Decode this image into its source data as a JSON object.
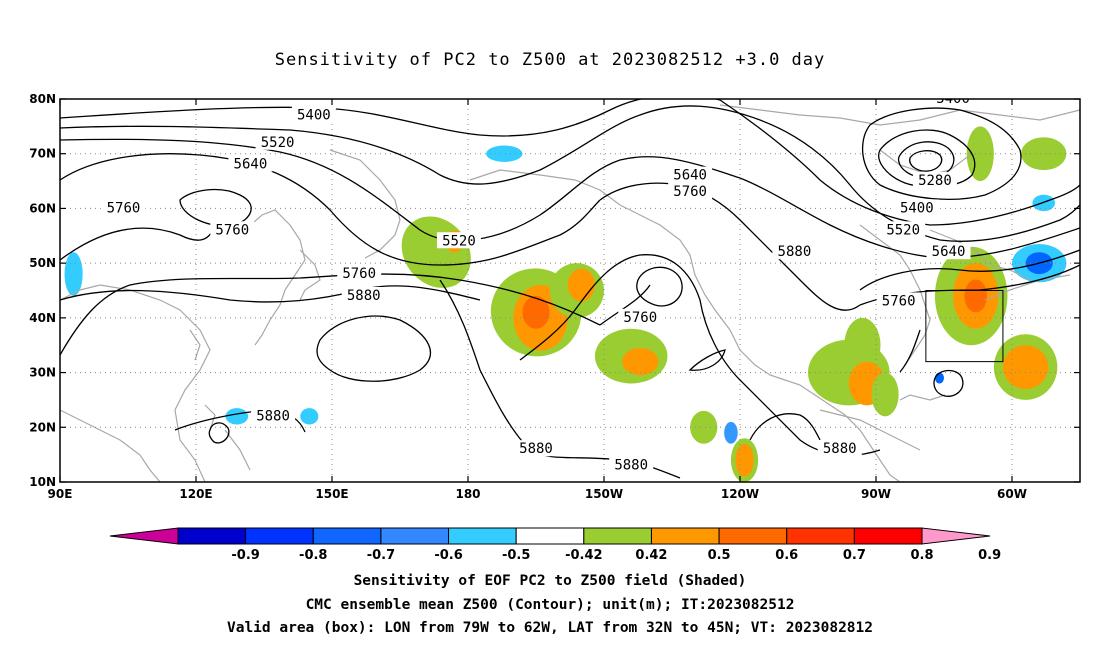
{
  "title": "Sensitivity of PC2 to Z500 at 2023082512 +3.0 day",
  "map": {
    "lon_range": [
      90,
      315
    ],
    "lat_range": [
      10,
      80
    ],
    "x_ticks": [
      {
        "lon": 90,
        "label": "90E"
      },
      {
        "lon": 120,
        "label": "120E"
      },
      {
        "lon": 150,
        "label": "150E"
      },
      {
        "lon": 180,
        "label": "180"
      },
      {
        "lon": 210,
        "label": "150W"
      },
      {
        "lon": 240,
        "label": "120W"
      },
      {
        "lon": 270,
        "label": "90W"
      },
      {
        "lon": 300,
        "label": "60W"
      }
    ],
    "y_ticks": [
      {
        "lat": 10,
        "label": "10N"
      },
      {
        "lat": 20,
        "label": "20N"
      },
      {
        "lat": 30,
        "label": "30N"
      },
      {
        "lat": 40,
        "label": "40N"
      },
      {
        "lat": 50,
        "label": "50N"
      },
      {
        "lat": 60,
        "label": "60N"
      },
      {
        "lat": 70,
        "label": "70N"
      },
      {
        "lat": 80,
        "label": "80N"
      }
    ],
    "grid": true,
    "valid_box": {
      "lon_min": 281,
      "lon_max": 298,
      "lat_min": 32,
      "lat_max": 45
    },
    "contour_labels": [
      {
        "text": "5400",
        "lon": 146,
        "lat": 77
      },
      {
        "text": "5520",
        "lon": 138,
        "lat": 72
      },
      {
        "text": "5640",
        "lon": 132,
        "lat": 68
      },
      {
        "text": "5760",
        "lon": 104,
        "lat": 60
      },
      {
        "text": "5760",
        "lon": 128,
        "lat": 56
      },
      {
        "text": "5520",
        "lon": 178,
        "lat": 54
      },
      {
        "text": "5760",
        "lon": 156,
        "lat": 48
      },
      {
        "text": "5880",
        "lon": 157,
        "lat": 44
      },
      {
        "text": "5880",
        "lon": 137,
        "lat": 22
      },
      {
        "text": "5880",
        "lon": 195,
        "lat": 16
      },
      {
        "text": "5880",
        "lon": 216,
        "lat": 13
      },
      {
        "text": "5640",
        "lon": 229,
        "lat": 66
      },
      {
        "text": "5760",
        "lon": 229,
        "lat": 63
      },
      {
        "text": "5760",
        "lon": 218,
        "lat": 40
      },
      {
        "text": "5880",
        "lon": 252,
        "lat": 52
      },
      {
        "text": "5880",
        "lon": 262,
        "lat": 16
      },
      {
        "text": "5400",
        "lon": 287,
        "lat": 80
      },
      {
        "text": "5280",
        "lon": 283,
        "lat": 65
      },
      {
        "text": "5400",
        "lon": 279,
        "lat": 60
      },
      {
        "text": "5520",
        "lon": 276,
        "lat": 56
      },
      {
        "text": "5640",
        "lon": 286,
        "lat": 52
      },
      {
        "text": "5760",
        "lon": 275,
        "lat": 43
      }
    ],
    "shading": [
      {
        "lon": 173,
        "lat": 52,
        "rx": 7,
        "ry": 7,
        "color": "#9acd32",
        "rot": -40
      },
      {
        "lon": 177,
        "lat": 54,
        "rx": 2,
        "ry": 2,
        "color": "#ff9800"
      },
      {
        "lon": 195,
        "lat": 41,
        "rx": 10,
        "ry": 8,
        "color": "#9acd32",
        "rot": 20
      },
      {
        "lon": 196,
        "lat": 40,
        "rx": 6,
        "ry": 6,
        "color": "#ff9800"
      },
      {
        "lon": 195,
        "lat": 41,
        "rx": 3,
        "ry": 3,
        "color": "#ff6a00"
      },
      {
        "lon": 204,
        "lat": 45,
        "rx": 6,
        "ry": 5,
        "color": "#9acd32"
      },
      {
        "lon": 205,
        "lat": 46,
        "rx": 3,
        "ry": 3,
        "color": "#ff9800"
      },
      {
        "lon": 216,
        "lat": 33,
        "rx": 8,
        "ry": 5,
        "color": "#9acd32"
      },
      {
        "lon": 218,
        "lat": 32,
        "rx": 4,
        "ry": 2.5,
        "color": "#ff9800"
      },
      {
        "lon": 232,
        "lat": 20,
        "rx": 3,
        "ry": 3,
        "color": "#9acd32"
      },
      {
        "lon": 241,
        "lat": 14,
        "rx": 3,
        "ry": 4,
        "color": "#9acd32"
      },
      {
        "lon": 241,
        "lat": 14,
        "rx": 2,
        "ry": 3,
        "color": "#ff9800"
      },
      {
        "lon": 264,
        "lat": 30,
        "rx": 9,
        "ry": 6,
        "color": "#9acd32"
      },
      {
        "lon": 267,
        "lat": 35,
        "rx": 4,
        "ry": 5,
        "color": "#9acd32"
      },
      {
        "lon": 268,
        "lat": 28,
        "rx": 4,
        "ry": 4,
        "color": "#ff9800"
      },
      {
        "lon": 272,
        "lat": 26,
        "rx": 3,
        "ry": 4,
        "color": "#9acd32"
      },
      {
        "lon": 291,
        "lat": 44,
        "rx": 8,
        "ry": 9,
        "color": "#9acd32"
      },
      {
        "lon": 292,
        "lat": 44,
        "rx": 5,
        "ry": 6,
        "color": "#ff9800"
      },
      {
        "lon": 292,
        "lat": 44,
        "rx": 2.5,
        "ry": 3,
        "color": "#ff6a00"
      },
      {
        "lon": 303,
        "lat": 31,
        "rx": 7,
        "ry": 6,
        "color": "#9acd32"
      },
      {
        "lon": 303,
        "lat": 31,
        "rx": 5,
        "ry": 4,
        "color": "#ff9800"
      },
      {
        "lon": 307,
        "lat": 70,
        "rx": 5,
        "ry": 3,
        "color": "#9acd32"
      },
      {
        "lon": 293,
        "lat": 70,
        "rx": 3,
        "ry": 5,
        "color": "#9acd32"
      },
      {
        "lon": 93,
        "lat": 48,
        "rx": 2,
        "ry": 4,
        "color": "#33ccff"
      },
      {
        "lon": 129,
        "lat": 22,
        "rx": 2.5,
        "ry": 1.5,
        "color": "#33ccff"
      },
      {
        "lon": 145,
        "lat": 22,
        "rx": 2,
        "ry": 1.5,
        "color": "#33ccff"
      },
      {
        "lon": 188,
        "lat": 70,
        "rx": 4,
        "ry": 1.5,
        "color": "#33ccff"
      },
      {
        "lon": 238,
        "lat": 19,
        "rx": 1.5,
        "ry": 2,
        "color": "#3399ff"
      },
      {
        "lon": 306,
        "lat": 50,
        "rx": 6,
        "ry": 3.5,
        "color": "#33ccff"
      },
      {
        "lon": 306,
        "lat": 50,
        "rx": 3,
        "ry": 2,
        "color": "#0066ff"
      },
      {
        "lon": 307,
        "lat": 61,
        "rx": 2.5,
        "ry": 1.5,
        "color": "#33ccff"
      },
      {
        "lon": 284,
        "lat": 29,
        "rx": 1,
        "ry": 1,
        "color": "#0066ff"
      }
    ]
  },
  "colorbar": {
    "colors": [
      "#cc0099",
      "#0000cc",
      "#0033ff",
      "#1166ff",
      "#3388ff",
      "#33ccff",
      "#ffffff",
      "#9acd32",
      "#ff9800",
      "#ff6a00",
      "#ff3300",
      "#ff0000",
      "#ff99cc"
    ],
    "labels": [
      "-0.9",
      "-0.8",
      "-0.7",
      "-0.6",
      "-0.5",
      "-0.42",
      "0.42",
      "0.5",
      "0.6",
      "0.7",
      "0.8",
      "0.9"
    ]
  },
  "captions": [
    "Sensitivity of EOF PC2 to Z500 field (Shaded)",
    "CMC ensemble mean Z500 (Contour); unit(m); IT:2023082512",
    "Valid area (box): LON from 79W to 62W, LAT from 32N to 45N; VT: 2023082812"
  ]
}
